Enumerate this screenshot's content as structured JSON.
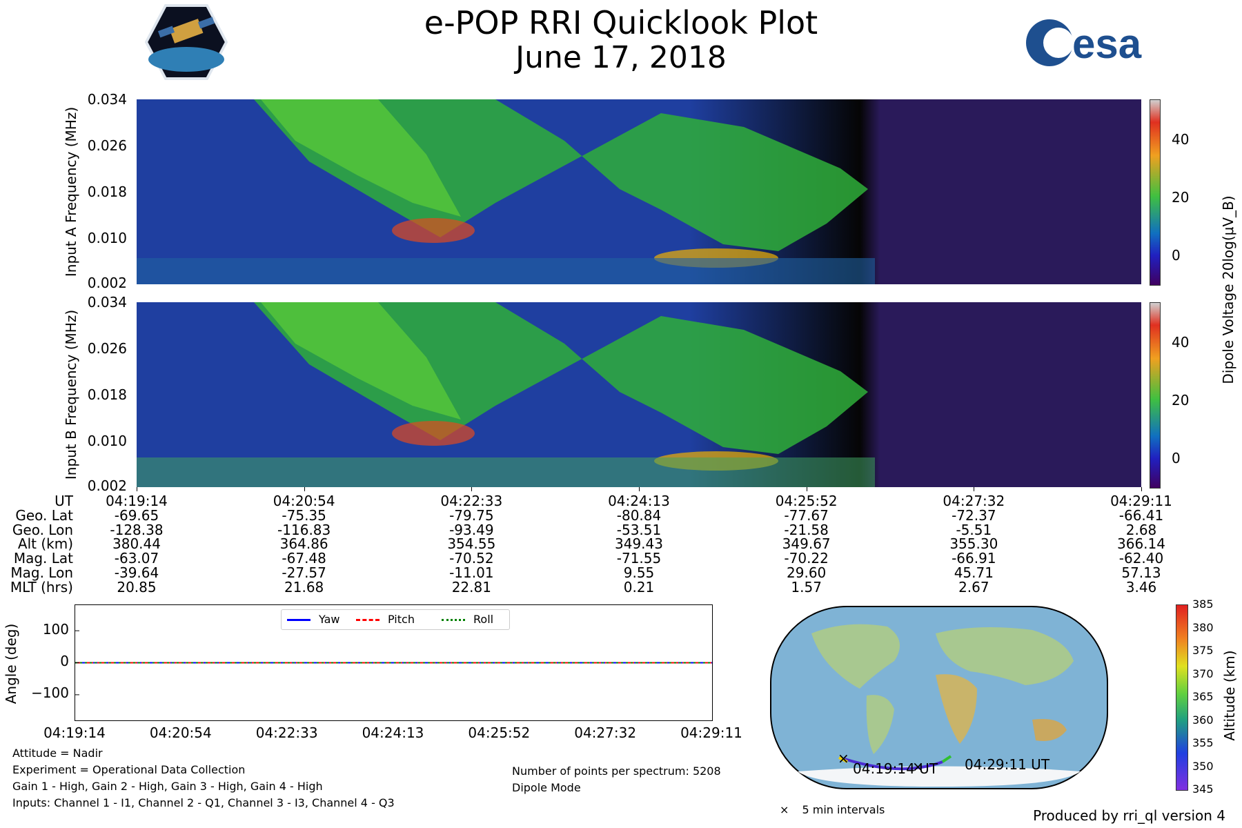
{
  "title": "e-POP RRI Quicklook Plot",
  "subtitle": "June 17, 2018",
  "logos": {
    "left": "CASSIOPE",
    "right": "esa"
  },
  "spectrograms": [
    {
      "ylabel": "Input A Frequency (MHz)"
    },
    {
      "ylabel": "Input B Frequency (MHz)"
    }
  ],
  "colorbar": {
    "label": "Dipole Voltage 20log(μV_B)",
    "ticks": [
      "40",
      "20",
      "0"
    ],
    "range": [
      -10,
      53
    ]
  },
  "chart_data": [
    {
      "type": "heatmap",
      "name": "Input A",
      "ylabel": "Input A Frequency (MHz)",
      "yticks": [
        "0.034",
        "0.026",
        "0.018",
        "0.010",
        "0.002"
      ],
      "ylim": [
        0.002,
        0.034
      ],
      "xticks": [
        "04:19:14",
        "04:20:54",
        "04:22:33",
        "04:24:13",
        "04:25:52",
        "04:27:32",
        "04:29:11"
      ],
      "colorbar_label": "Dipole Voltage 20log(μV_B)",
      "colorbar_ticks": [
        40,
        20,
        0
      ],
      "colorbar_range": [
        -10,
        53
      ]
    },
    {
      "type": "heatmap",
      "name": "Input B",
      "ylabel": "Input B Frequency (MHz)",
      "yticks": [
        "0.034",
        "0.026",
        "0.018",
        "0.010",
        "0.002"
      ],
      "ylim": [
        0.002,
        0.034
      ],
      "xticks": [
        "04:19:14",
        "04:20:54",
        "04:22:33",
        "04:24:13",
        "04:25:52",
        "04:27:32",
        "04:29:11"
      ],
      "colorbar_label": "Dipole Voltage 20log(μV_B)",
      "colorbar_ticks": [
        40,
        20,
        0
      ],
      "colorbar_range": [
        -10,
        53
      ]
    },
    {
      "type": "line",
      "ylabel": "Angle (deg)",
      "yticks": [
        "100",
        "0",
        "−100"
      ],
      "ylim": [
        -180,
        180
      ],
      "xticks": [
        "04:19:14",
        "04:20:54",
        "04:22:33",
        "04:24:13",
        "04:25:52",
        "04:27:32",
        "04:29:11"
      ],
      "legend": "top-center",
      "series": [
        {
          "name": "Yaw",
          "color": "#0000ff",
          "values": [
            0,
            0,
            0,
            0,
            0,
            0,
            0
          ]
        },
        {
          "name": "Pitch",
          "color": "#ff0000",
          "values": [
            0,
            0,
            0,
            0,
            0,
            0,
            0
          ]
        },
        {
          "name": "Roll",
          "color": "#008000",
          "values": [
            0,
            0,
            0,
            0,
            0,
            0,
            0
          ]
        }
      ]
    },
    {
      "type": "map",
      "track_labels": [
        "04:19:14 UT",
        "04:29:11 UT"
      ],
      "legend": "5 min intervals",
      "colorbar_label": "Altitude (km)",
      "colorbar_ticks": [
        "385",
        "380",
        "375",
        "370",
        "365",
        "360",
        "355",
        "350",
        "345"
      ]
    }
  ],
  "table": {
    "row_labels": [
      "UT",
      "Geo. Lat",
      "Geo. Lon",
      "Alt (km)",
      "Mag. Lat",
      "Mag. Lon",
      "MLT (hrs)"
    ],
    "columns": [
      [
        "04:19:14",
        "-69.65",
        "-128.38",
        "380.44",
        "-63.07",
        "-39.64",
        "20.85"
      ],
      [
        "04:20:54",
        "-75.35",
        "-116.83",
        "364.86",
        "-67.48",
        "-27.57",
        "21.68"
      ],
      [
        "04:22:33",
        "-79.75",
        "-93.49",
        "354.55",
        "-70.52",
        "-11.01",
        "22.81"
      ],
      [
        "04:24:13",
        "-80.84",
        "-53.51",
        "349.43",
        "-71.55",
        "9.55",
        "0.21"
      ],
      [
        "04:25:52",
        "-77.67",
        "-21.58",
        "349.67",
        "-70.22",
        "29.60",
        "1.57"
      ],
      [
        "04:27:32",
        "-72.37",
        "-5.51",
        "355.30",
        "-66.91",
        "45.71",
        "2.67"
      ],
      [
        "04:29:11",
        "-66.41",
        "2.68",
        "366.14",
        "-62.40",
        "57.13",
        "3.46"
      ]
    ]
  },
  "notes_left": [
    "Attitude = Nadir",
    "Experiment = Operational Data Collection",
    "Gain 1 - High, Gain 2 - High, Gain 3 - High, Gain 4 - High",
    "Inputs: Channel 1 - I1, Channel 2 - Q1, Channel 3 - I3, Channel 4 - Q3"
  ],
  "notes_right": [
    "Number of points per spectrum: 5208",
    "Dipole Mode"
  ],
  "footer": "Produced by rri_ql version 4",
  "colors": {
    "spectrogram_base": "#1a1a70",
    "quiet_region": "#2a1a5a",
    "ocean": "#7fb3d5",
    "land": "#a8c890"
  }
}
